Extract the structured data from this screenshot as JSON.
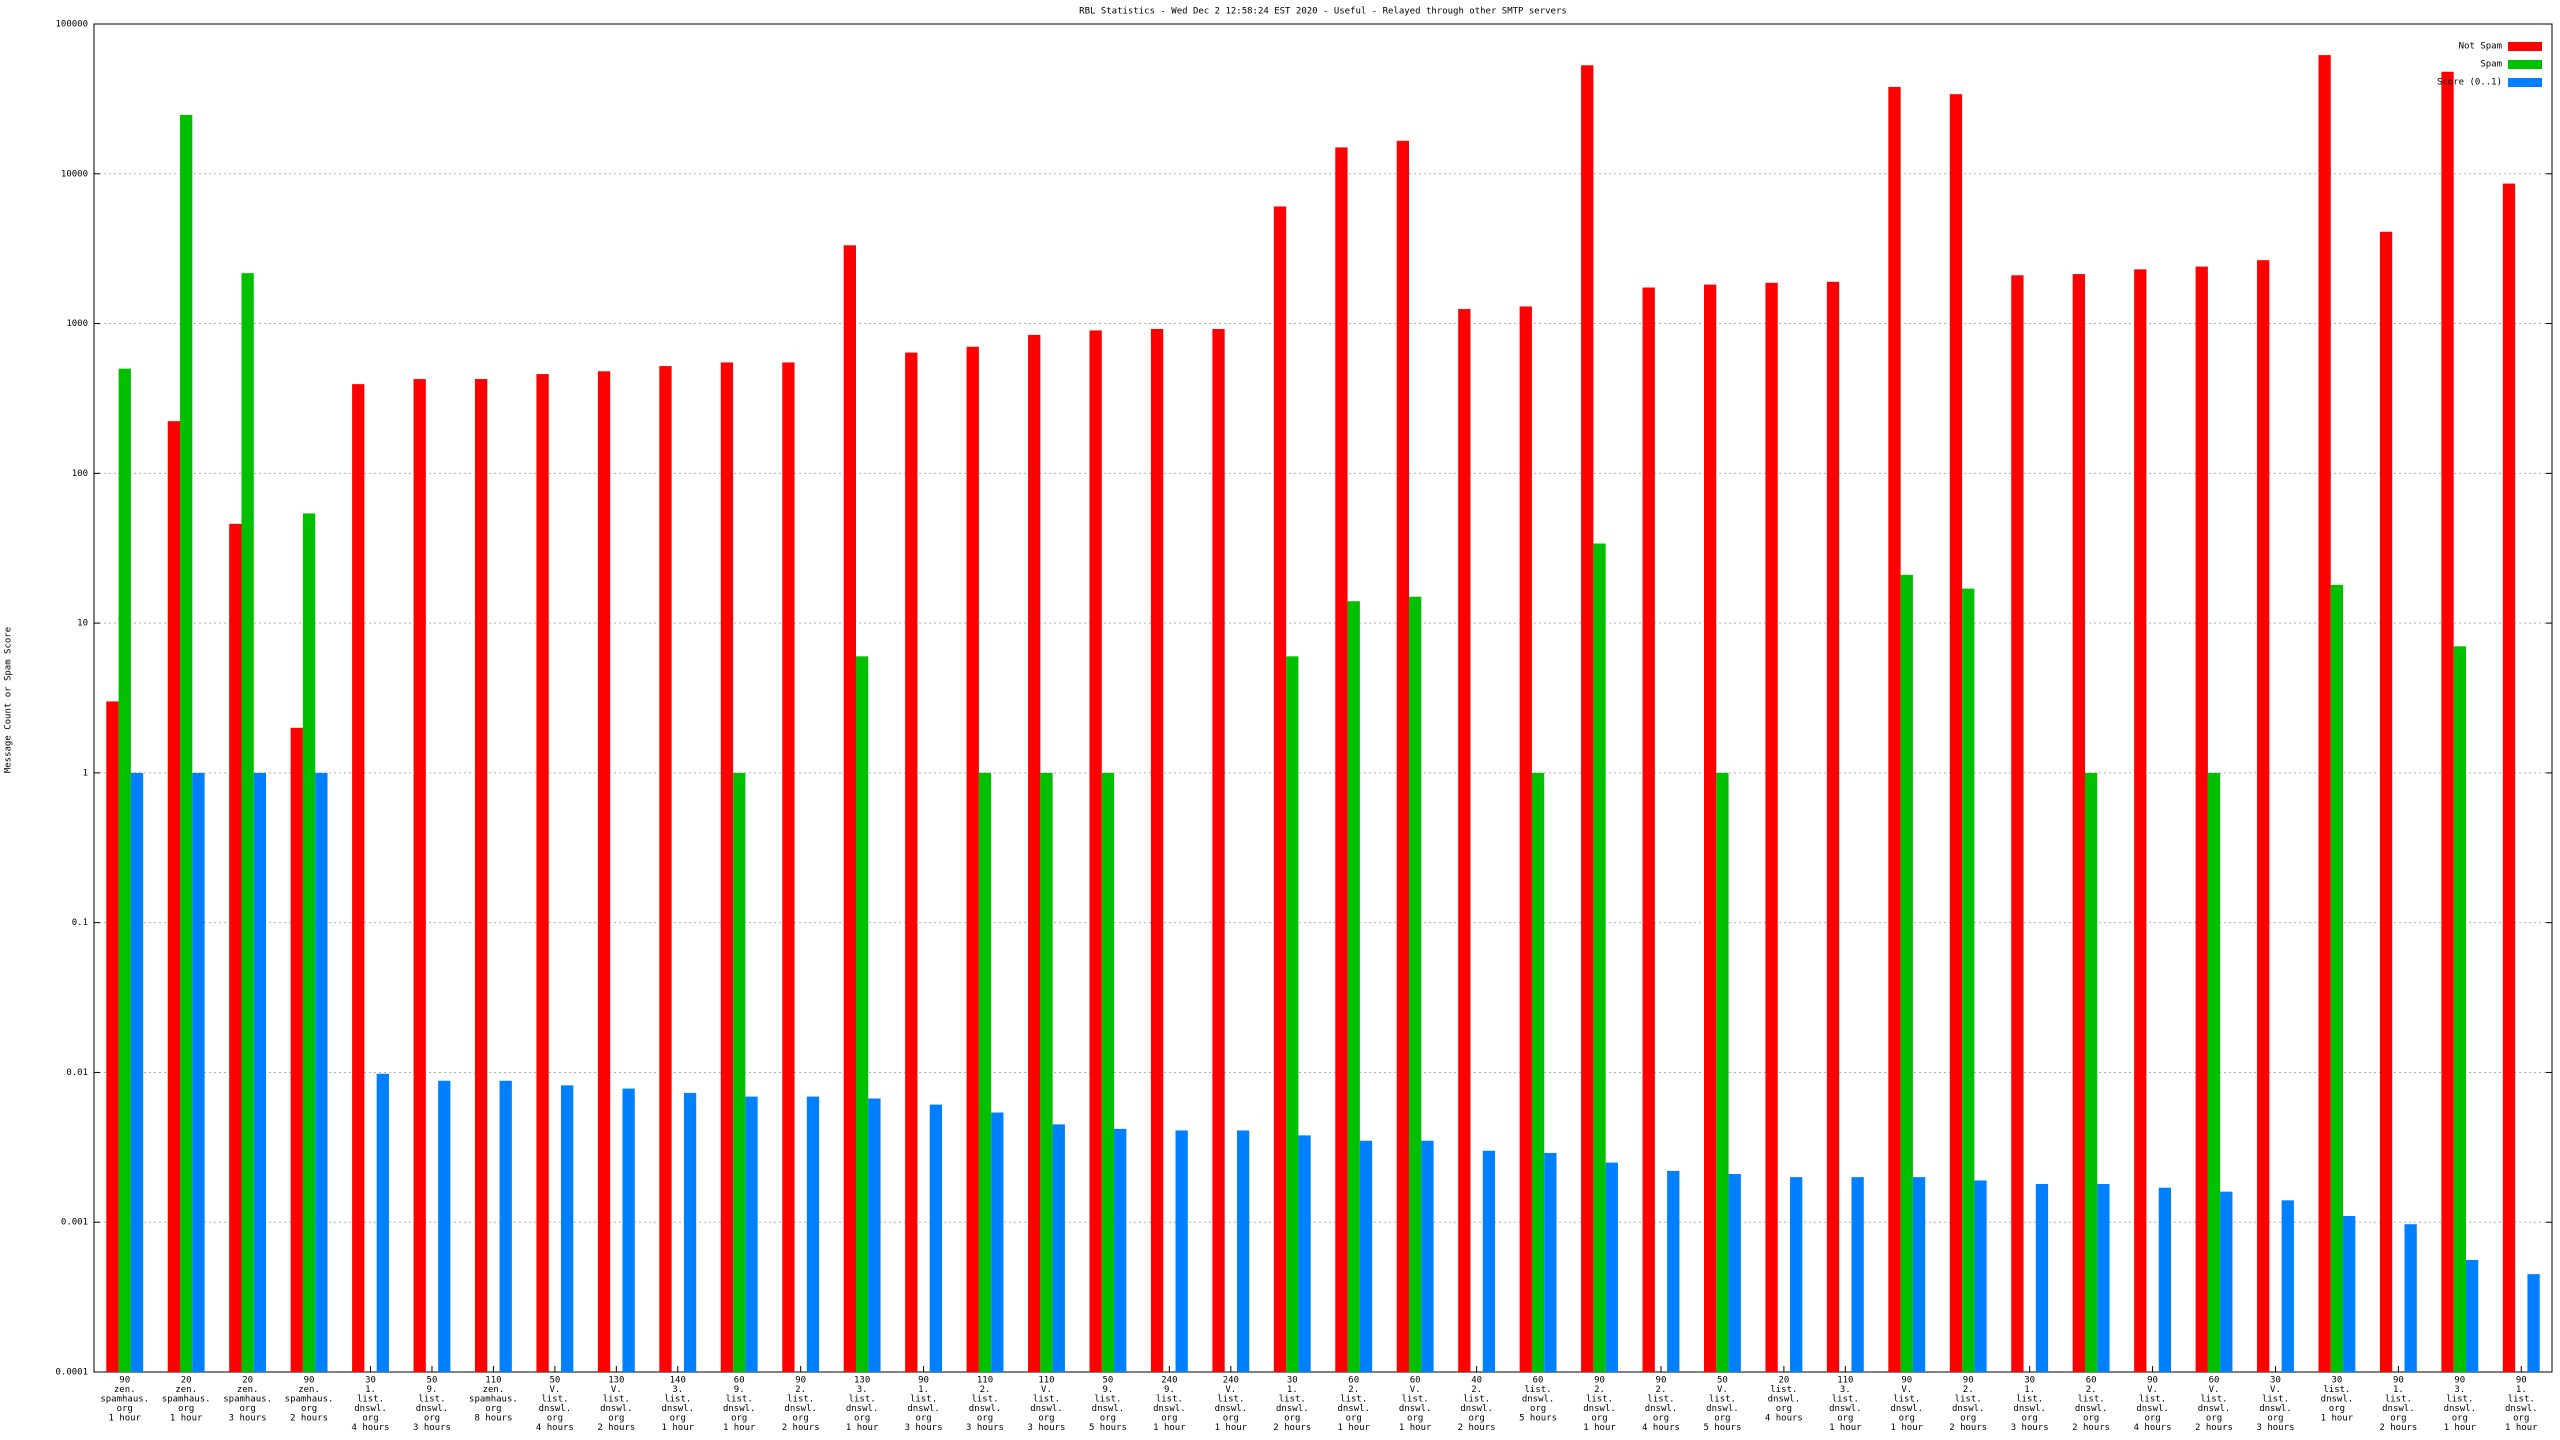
{
  "chart_data": {
    "type": "bar",
    "title": "RBL Statistics - Wed Dec  2 12:58:24 EST 2020 - Useful - Relayed through other SMTP servers",
    "y_label": "Message Count or Spam Score",
    "log": true,
    "grid": true,
    "legend": "top-right",
    "ylim": [
      0.0001,
      100000
    ],
    "yticks": [
      0.0001,
      0.001,
      0.01,
      0.1,
      1,
      10,
      100,
      1000,
      10000,
      100000
    ],
    "categories": [
      [
        "90",
        "zen.",
        "spamhaus.",
        "org",
        "1 hour"
      ],
      [
        "20",
        "zen.",
        "spamhaus.",
        "org",
        "1 hour"
      ],
      [
        "20",
        "zen.",
        "spamhaus.",
        "org",
        "3 hours"
      ],
      [
        "90",
        "zen.",
        "spamhaus.",
        "org",
        "2 hours"
      ],
      [
        "30",
        "1.",
        "list.",
        "dnswl.",
        "org",
        "4 hours"
      ],
      [
        "50",
        "9.",
        "list.",
        "dnswl.",
        "org",
        "3 hours"
      ],
      [
        "110",
        "zen.",
        "spamhaus.",
        "org",
        "8 hours"
      ],
      [
        "50",
        "V.",
        "list.",
        "dnswl.",
        "org",
        "4 hours"
      ],
      [
        "130",
        "V.",
        "list.",
        "dnswl.",
        "org",
        "2 hours"
      ],
      [
        "140",
        "3.",
        "list.",
        "dnswl.",
        "org",
        "1 hour"
      ],
      [
        "60",
        "9.",
        "list.",
        "dnswl.",
        "org",
        "1 hour"
      ],
      [
        "90",
        "2.",
        "list.",
        "dnswl.",
        "org",
        "2 hours"
      ],
      [
        "130",
        "3.",
        "list.",
        "dnswl.",
        "org",
        "1 hour"
      ],
      [
        "90",
        "1.",
        "list.",
        "dnswl.",
        "org",
        "3 hours"
      ],
      [
        "110",
        "2.",
        "list.",
        "dnswl.",
        "org",
        "3 hours"
      ],
      [
        "110",
        "V.",
        "list.",
        "dnswl.",
        "org",
        "3 hours"
      ],
      [
        "50",
        "9.",
        "list.",
        "dnswl.",
        "org",
        "5 hours"
      ],
      [
        "240",
        "9.",
        "list.",
        "dnswl.",
        "org",
        "1 hour"
      ],
      [
        "240",
        "V.",
        "list.",
        "dnswl.",
        "org",
        "1 hour"
      ],
      [
        "30",
        "1.",
        "list.",
        "dnswl.",
        "org",
        "2 hours"
      ],
      [
        "60",
        "2.",
        "list.",
        "dnswl.",
        "org",
        "1 hour"
      ],
      [
        "60",
        "V.",
        "list.",
        "dnswl.",
        "org",
        "1 hour"
      ],
      [
        "40",
        "2.",
        "list.",
        "dnswl.",
        "org",
        "2 hours"
      ],
      [
        "60",
        "list.",
        "dnswl.",
        "org",
        "5 hours"
      ],
      [
        "90",
        "2.",
        "list.",
        "dnswl.",
        "org",
        "1 hour"
      ],
      [
        "90",
        "2.",
        "list.",
        "dnswl.",
        "org",
        "4 hours"
      ],
      [
        "50",
        "V.",
        "list.",
        "dnswl.",
        "org",
        "5 hours"
      ],
      [
        "20",
        "list.",
        "dnswl.",
        "org",
        "4 hours"
      ],
      [
        "110",
        "3.",
        "list.",
        "dnswl.",
        "org",
        "1 hour"
      ],
      [
        "90",
        "V.",
        "list.",
        "dnswl.",
        "org",
        "1 hour"
      ],
      [
        "90",
        "2.",
        "list.",
        "dnswl.",
        "org",
        "2 hours"
      ],
      [
        "30",
        "1.",
        "list.",
        "dnswl.",
        "org",
        "3 hours"
      ],
      [
        "60",
        "2.",
        "list.",
        "dnswl.",
        "org",
        "2 hours"
      ],
      [
        "90",
        "V.",
        "list.",
        "dnswl.",
        "org",
        "4 hours"
      ],
      [
        "60",
        "V.",
        "list.",
        "dnswl.",
        "org",
        "2 hours"
      ],
      [
        "30",
        "V.",
        "list.",
        "dnswl.",
        "org",
        "3 hours"
      ],
      [
        "30",
        "list.",
        "dnswl.",
        "org",
        "1 hour"
      ],
      [
        "90",
        "1.",
        "list.",
        "dnswl.",
        "org",
        "2 hours"
      ],
      [
        "90",
        "3.",
        "list.",
        "dnswl.",
        "org",
        "1 hour"
      ],
      [
        "90",
        "1.",
        "list.",
        "dnswl.",
        "org",
        "1 hour"
      ]
    ],
    "series": [
      {
        "name": "Not Spam",
        "color": "#ff0000",
        "values": [
          3,
          223,
          46,
          2,
          394,
          426,
          426,
          460,
          480,
          520,
          550,
          550,
          3330,
          640,
          700,
          840,
          900,
          920,
          920,
          6050,
          15000,
          16600,
          1250,
          1300,
          53000,
          1740,
          1820,
          1870,
          1900,
          38000,
          34000,
          2100,
          2140,
          2300,
          2400,
          2650,
          62000,
          4100,
          48000,
          8600
        ]
      },
      {
        "name": "Spam",
        "color": "#00c000",
        "values": [
          500,
          24700,
          2170,
          54,
          null,
          null,
          null,
          null,
          null,
          null,
          1,
          null,
          6,
          null,
          1,
          1,
          1,
          null,
          null,
          6,
          14,
          15,
          null,
          1,
          34,
          null,
          1,
          null,
          null,
          21,
          17,
          null,
          1,
          null,
          1,
          null,
          18,
          null,
          7,
          null
        ]
      },
      {
        "name": "Score (0..1)",
        "color": "#0080ff",
        "values": [
          1,
          1,
          1,
          1,
          0.0098,
          0.0088,
          0.0088,
          0.0082,
          0.0078,
          0.0073,
          0.0069,
          0.0069,
          0.0067,
          0.0061,
          0.0054,
          0.0045,
          0.0042,
          0.0041,
          0.0041,
          0.0038,
          0.0035,
          0.0035,
          0.003,
          0.0029,
          0.0025,
          0.0022,
          0.0021,
          0.002,
          0.002,
          0.002,
          0.0019,
          0.0018,
          0.0018,
          0.0017,
          0.0016,
          0.0014,
          0.0011,
          0.00097,
          0.00056,
          0.00045
        ]
      }
    ]
  }
}
